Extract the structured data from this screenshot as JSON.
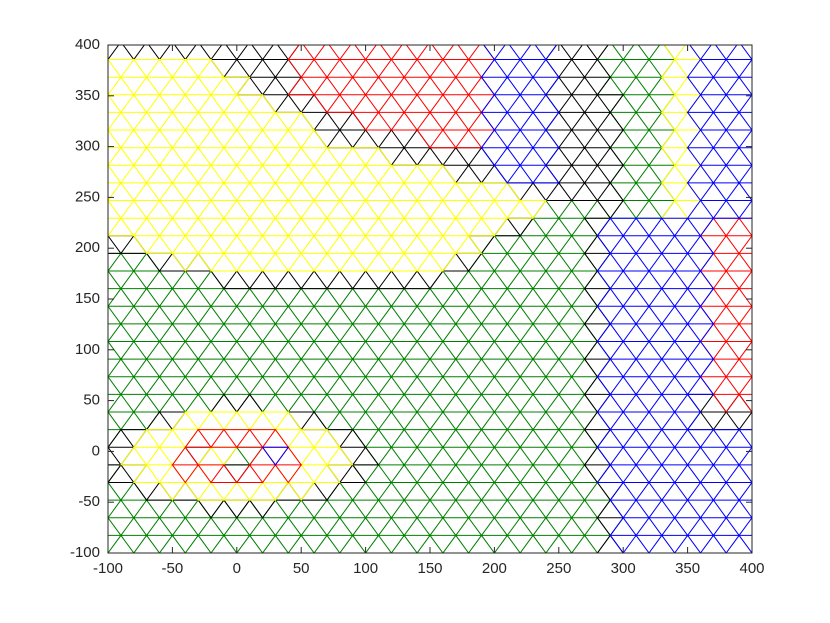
{
  "chart_data": {
    "type": "mesh",
    "xlim": [
      -100,
      400
    ],
    "ylim": [
      -100,
      400
    ],
    "xticks": [
      -100,
      -50,
      0,
      50,
      100,
      150,
      200,
      250,
      300,
      350,
      400
    ],
    "yticks": [
      -100,
      -50,
      0,
      50,
      100,
      150,
      200,
      250,
      300,
      350,
      400
    ]
  }
}
